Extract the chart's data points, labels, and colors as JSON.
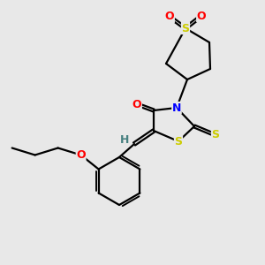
{
  "background_color": "#e8e8e8",
  "bond_color": "#000000",
  "atom_colors": {
    "S": "#cccc00",
    "O": "#ff0000",
    "N": "#0000ff",
    "H": "#468080",
    "C": "#000000"
  },
  "figsize": [
    3.0,
    3.0
  ],
  "dpi": 100
}
